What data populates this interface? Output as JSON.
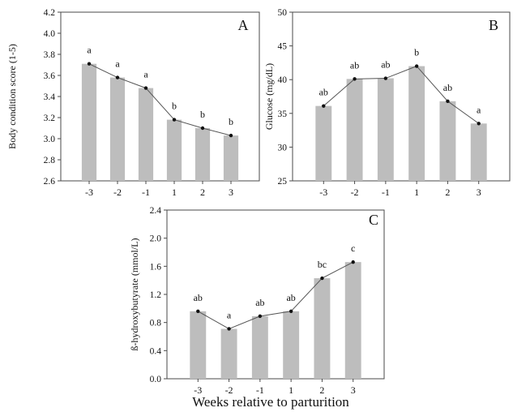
{
  "figure_xlabel": "Weeks relative to parturition",
  "colors": {
    "bar": "#bdbdbd",
    "line": "#555555",
    "point": "#111111",
    "axis": "#4a4a4a"
  },
  "chart_data": [
    {
      "type": "bar",
      "panel_label": "A",
      "categories": [
        "-3",
        "-2",
        "-1",
        "1",
        "2",
        "3"
      ],
      "values": [
        3.71,
        3.58,
        3.48,
        3.18,
        3.1,
        3.03
      ],
      "letters": [
        "a",
        "a",
        "a",
        "b",
        "b",
        "b"
      ],
      "ylabel": "Body condition score (1-5)",
      "ylim": [
        2.6,
        4.2
      ],
      "yticks": [
        2.6,
        2.8,
        3.0,
        3.2,
        3.4,
        3.6,
        3.8,
        4.0,
        4.2
      ],
      "ytick_labels": [
        "2.6",
        "2.8",
        "3.0",
        "3.2",
        "3.4",
        "3.6",
        "3.8",
        "4.0",
        "4.2"
      ],
      "overlay_line": true,
      "grid": false
    },
    {
      "type": "bar",
      "panel_label": "B",
      "categories": [
        "-3",
        "-2",
        "-1",
        "1",
        "2",
        "3"
      ],
      "values": [
        36.1,
        40.1,
        40.2,
        42.0,
        36.8,
        33.5
      ],
      "letters": [
        "ab",
        "ab",
        "ab",
        "b",
        "ab",
        "a"
      ],
      "ylabel": "Glucose (mg/dL)",
      "ylim": [
        25,
        50
      ],
      "yticks": [
        25,
        30,
        35,
        40,
        45,
        50
      ],
      "ytick_labels": [
        "25",
        "30",
        "35",
        "40",
        "45",
        "50"
      ],
      "overlay_line": true,
      "grid": false
    },
    {
      "type": "bar",
      "panel_label": "C",
      "categories": [
        "-3",
        "-2",
        "-1",
        "1",
        "2",
        "3"
      ],
      "values": [
        0.96,
        0.71,
        0.89,
        0.96,
        1.43,
        1.66
      ],
      "letters": [
        "ab",
        "a",
        "ab",
        "ab",
        "bc",
        "c"
      ],
      "ylabel": "ß-hydroxybutyrate (mmol/L)",
      "ylim": [
        0.0,
        2.4
      ],
      "yticks": [
        0.0,
        0.4,
        0.8,
        1.2,
        1.6,
        2.0,
        2.4
      ],
      "ytick_labels": [
        "0.0",
        "0.4",
        "0.8",
        "1.2",
        "1.6",
        "2.0",
        "2.4"
      ],
      "overlay_line": true,
      "grid": false
    }
  ]
}
